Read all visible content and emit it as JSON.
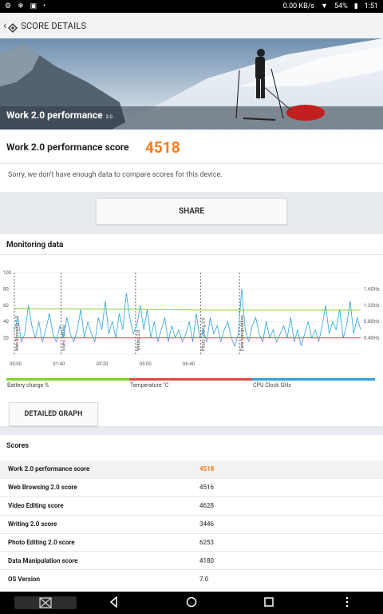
{
  "statusbar": {
    "left_icons": [
      "gear-icon",
      "snowflake-icon",
      "image-icon",
      "dot-icon"
    ],
    "speed": "0.00 KB/s",
    "battery": "54%",
    "time": "1:51"
  },
  "appbar": {
    "title": "SCORE DETAILS"
  },
  "hero": {
    "title": "Work 2.0 performance",
    "version": "2.0"
  },
  "score": {
    "label": "Work 2.0 performance score",
    "value": "4518",
    "note": "Sorry, we don't have enough data to compare scores for this device."
  },
  "share_label": "SHARE",
  "monitoring": {
    "heading": "Monitoring data",
    "legend": [
      {
        "label": "Battery charge %",
        "color": "#7ed321"
      },
      {
        "label": "Temperature °C",
        "color": "#e64545"
      },
      {
        "label": "CPU Clock GHz",
        "color": "#2aa3e0"
      }
    ],
    "detailed_graph_label": "DETAILED GRAPH"
  },
  "chart_data": {
    "type": "line",
    "x_ticks": [
      "00:00",
      "01:40",
      "03:20",
      "05:00",
      "06:40"
    ],
    "y_left_ticks": [
      "100",
      "80",
      "60",
      "40",
      "20"
    ],
    "y_right_ticks": [
      "1.6GHz",
      "1.2GHz",
      "0.8GHz",
      "0.4GHz"
    ],
    "section_labels": [
      "Web Browsing 2.0",
      "Video Editing",
      "Writing 2.0",
      "Photo Editing 2.0",
      "Data Manipulation"
    ],
    "section_start_seconds": [
      0,
      108,
      280,
      430,
      520
    ],
    "duration_seconds": 800,
    "series": [
      {
        "name": "Battery charge %",
        "axis": "left",
        "color": "#7ed321",
        "points": [
          [
            0,
            56
          ],
          [
            280,
            55
          ],
          [
            430,
            54
          ],
          [
            520,
            54
          ],
          [
            800,
            54
          ]
        ]
      },
      {
        "name": "Temperature °C",
        "axis": "left",
        "color": "#e64545",
        "points": [
          [
            0,
            20
          ],
          [
            800,
            20
          ]
        ]
      },
      {
        "name": "CPU Clock GHz",
        "axis": "right",
        "color": "#2aa3e0",
        "values": [
          0.6,
          0.9,
          0.3,
          0.5,
          1.2,
          0.7,
          0.4,
          0.8,
          0.3,
          0.6,
          1.0,
          0.5,
          0.3,
          0.7,
          0.4,
          0.9,
          0.5,
          0.3,
          0.6,
          1.1,
          0.4,
          0.8,
          0.5,
          0.3,
          0.9,
          0.6,
          1.3,
          0.5,
          0.8,
          0.4,
          1.0,
          0.6,
          1.5,
          0.9,
          0.5,
          0.7,
          1.2,
          0.6,
          1.1,
          0.4,
          0.8,
          0.3,
          0.6,
          0.9,
          0.3,
          0.7,
          0.4,
          0.6,
          0.3,
          0.5,
          0.8,
          0.3,
          1.0,
          0.4,
          0.6,
          0.3,
          0.9,
          0.5,
          0.7,
          0.3,
          0.6,
          0.8,
          0.4,
          0.2,
          0.5,
          1.6,
          0.6,
          0.3,
          0.7,
          0.9,
          0.5,
          0.3,
          0.8,
          0.4,
          0.6,
          0.3,
          0.5,
          0.7,
          0.4,
          0.9,
          0.3,
          0.6,
          0.2,
          0.5,
          0.8,
          0.4,
          0.6,
          0.3,
          0.7,
          1.2,
          0.5,
          0.8,
          0.6,
          1.1,
          0.4,
          0.7,
          1.3,
          0.5,
          0.9,
          0.6
        ]
      }
    ]
  },
  "scores": {
    "heading": "Scores",
    "rows": [
      {
        "label": "Work 2.0 performance score",
        "value": "4518"
      },
      {
        "label": "Web Browsing 2.0 score",
        "value": "4516"
      },
      {
        "label": "Video Editing score",
        "value": "4628"
      },
      {
        "label": "Writing 2.0 score",
        "value": "3446"
      },
      {
        "label": "Photo Editing 2.0 score",
        "value": "6253"
      },
      {
        "label": "Data Manipulation score",
        "value": "4180"
      },
      {
        "label": "OS Version",
        "value": "7.0"
      }
    ]
  },
  "navbar": {
    "icons": [
      "screenshot-icon",
      "back-icon",
      "home-icon",
      "recents-icon",
      "menu-icon"
    ]
  }
}
